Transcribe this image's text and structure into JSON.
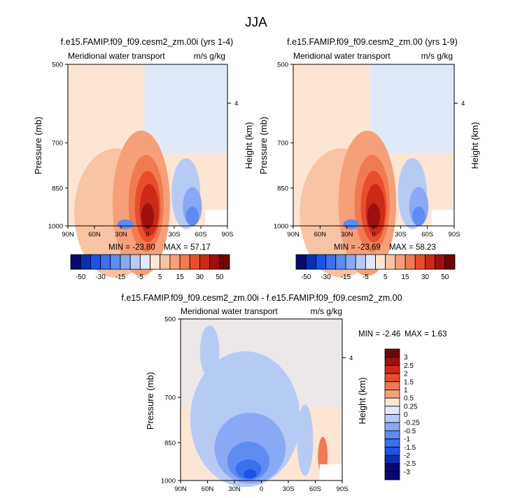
{
  "figure_title": "JJA",
  "chart_data": [
    {
      "type": "heatmap",
      "title": "f.e15.FAMIP.f09_f09.cesm2_zm.00i (yrs 1-4)",
      "left_string": "Meridional water transport",
      "right_string": "m/s g/kg",
      "ylabel": "Pressure (mb)",
      "y2label": "Height (km)",
      "x_ticks": [
        "90N",
        "60N",
        "30N",
        "0",
        "30S",
        "60S",
        "90S"
      ],
      "y_ticks": [
        "500",
        "700",
        "850",
        "1000"
      ],
      "y2_ticks": [
        "4"
      ],
      "min_label": "MIN = -23.80",
      "max_label": "MAX =  57.17",
      "min": -23.8,
      "max": 57.17,
      "colorbar": {
        "orientation": "horizontal",
        "labels": [
          "-50",
          "-30",
          "-15",
          "-5",
          "5",
          "15",
          "30",
          "50"
        ],
        "levels": [
          -50,
          -40,
          -30,
          -20,
          -15,
          -10,
          -5,
          0,
          5,
          10,
          15,
          20,
          30,
          40,
          50
        ]
      }
    },
    {
      "type": "heatmap",
      "title": "f.e15.FAMIP.f09_f09.cesm2_zm.00 (yrs 1-9)",
      "left_string": "Meridional water transport",
      "right_string": "m/s g/kg",
      "ylabel": "Pressure (mb)",
      "y2label": "Height (km)",
      "x_ticks": [
        "90N",
        "60N",
        "30N",
        "0",
        "30S",
        "60S",
        "90S"
      ],
      "y_ticks": [
        "500",
        "700",
        "850",
        "1000"
      ],
      "y2_ticks": [
        "4"
      ],
      "min_label": "MIN = -23.69",
      "max_label": "MAX =  58.23",
      "min": -23.69,
      "max": 58.23,
      "colorbar": {
        "orientation": "horizontal",
        "labels": [
          "-50",
          "-30",
          "-15",
          "-5",
          "5",
          "15",
          "30",
          "50"
        ],
        "levels": [
          -50,
          -40,
          -30,
          -20,
          -15,
          -10,
          -5,
          0,
          5,
          10,
          15,
          20,
          30,
          40,
          50
        ]
      }
    },
    {
      "type": "heatmap",
      "title": "f.e15.FAMIP.f09_f09.cesm2_zm.00i - f.e15.FAMIP.f09_f09.cesm2_zm.00",
      "left_string": "Meridional water transport",
      "right_string": "m/s g/kg",
      "ylabel": "Pressure (mb)",
      "y2label": "Height (km)",
      "x_ticks": [
        "90N",
        "60N",
        "30N",
        "0",
        "30S",
        "60S",
        "90S"
      ],
      "y_ticks": [
        "500",
        "700",
        "850",
        "1000"
      ],
      "y2_ticks": [
        "4"
      ],
      "min_label": "MIN =  -2.46",
      "max_label": "MAX =   1.63",
      "min": -2.46,
      "max": 1.63,
      "colorbar": {
        "orientation": "vertical",
        "labels": [
          "3",
          "2.5",
          "2",
          "1.5",
          "1",
          "0.5",
          "0.25",
          "0",
          "-0.25",
          "-0.5",
          "-1",
          "-1.5",
          "-2",
          "-2.5",
          "-3"
        ],
        "levels": [
          3,
          2.5,
          2,
          1.5,
          1,
          0.5,
          0.25,
          0,
          -0.25,
          -0.5,
          -1,
          -1.5,
          -2,
          -2.5,
          -3
        ]
      }
    }
  ],
  "colors": {
    "palette": [
      "#08086e",
      "#0a2fb4",
      "#1c52e6",
      "#3a6fee",
      "#5e8cf2",
      "#8aa9f4",
      "#b6cbf4",
      "#dfe9fa",
      "#fde5d4",
      "#f9c4a4",
      "#f6a07a",
      "#f17a52",
      "#e84e2b",
      "#cc2a17",
      "#9e1010",
      "#6e0606"
    ],
    "diff_palette": [
      "#6e0606",
      "#9e1010",
      "#cc2a17",
      "#e84e2b",
      "#f17a52",
      "#f6a07a",
      "#fde5d4",
      "#dfe9fa",
      "#b6cbf4",
      "#8aa9f4",
      "#5e8cf2",
      "#3a6fee",
      "#1c52e6",
      "#0a2fb4",
      "#08086e"
    ]
  }
}
